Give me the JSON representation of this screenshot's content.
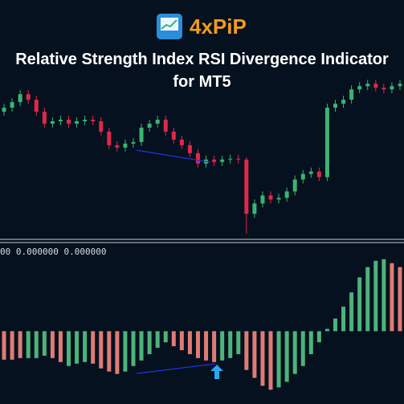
{
  "header": {
    "logo": "4xPiP",
    "title": "Relative Strength Index RSI Divergence Indicator for MT5"
  },
  "chart_data": [
    {
      "type": "candlestick",
      "up_color": "#3cb371",
      "down_color": "#e0284a",
      "ylim": [
        0,
        300
      ],
      "open": [
        160,
        165,
        172,
        182,
        175,
        160,
        145,
        148,
        150,
        145,
        148,
        150,
        148,
        135,
        118,
        115,
        120,
        122,
        140,
        145,
        150,
        135,
        125,
        118,
        108,
        95,
        100,
        97,
        100,
        101,
        100,
        32,
        45,
        55,
        50,
        52,
        60,
        75,
        82,
        85,
        78,
        165,
        170,
        175,
        188,
        192,
        195,
        190,
        188,
        192
      ],
      "high": [
        170,
        177,
        187,
        187,
        180,
        165,
        153,
        155,
        155,
        153,
        155,
        155,
        153,
        140,
        123,
        125,
        127,
        145,
        150,
        155,
        155,
        140,
        130,
        123,
        113,
        105,
        105,
        105,
        106,
        106,
        103,
        50,
        60,
        60,
        57,
        65,
        80,
        87,
        90,
        90,
        170,
        175,
        180,
        193,
        197,
        200,
        200,
        195,
        197,
        200
      ],
      "low": [
        155,
        160,
        167,
        170,
        155,
        140,
        140,
        143,
        140,
        140,
        143,
        143,
        130,
        113,
        110,
        110,
        115,
        117,
        135,
        140,
        130,
        120,
        113,
        103,
        90,
        90,
        92,
        92,
        95,
        95,
        7,
        27,
        40,
        45,
        45,
        47,
        55,
        70,
        77,
        73,
        73,
        160,
        165,
        170,
        183,
        187,
        185,
        183,
        183,
        187
      ],
      "close": [
        165,
        172,
        182,
        175,
        160,
        145,
        148,
        150,
        145,
        148,
        150,
        148,
        135,
        118,
        115,
        120,
        122,
        140,
        145,
        150,
        135,
        125,
        118,
        108,
        95,
        100,
        97,
        100,
        101,
        100,
        32,
        45,
        55,
        50,
        52,
        60,
        75,
        82,
        85,
        78,
        165,
        170,
        175,
        188,
        192,
        195,
        190,
        188,
        192,
        195
      ]
    },
    {
      "type": "histogram",
      "label": "00 0.000000 0.000000",
      "ylim": [
        -92,
        111
      ],
      "values": [
        -36,
        -36,
        -34,
        -34,
        -34,
        -31,
        -34,
        -39,
        -44,
        -41,
        -39,
        -41,
        -47,
        -51,
        -54,
        -51,
        -44,
        -37,
        -29,
        -21,
        -14,
        -19,
        -24,
        -29,
        -34,
        -37,
        -39,
        -37,
        -34,
        -29,
        -49,
        -59,
        -69,
        -74,
        -71,
        -64,
        -54,
        -44,
        -29,
        -14,
        3,
        16,
        31,
        49,
        68,
        81,
        89,
        91,
        86,
        81
      ],
      "colors": [
        "#e07b74",
        "#e07b74",
        "#e07b74",
        "#4db37a",
        "#4db37a",
        "#4db37a",
        "#e07b74",
        "#e07b74",
        "#4db37a",
        "#4db37a",
        "#4db37a",
        "#e07b74",
        "#e07b74",
        "#e07b74",
        "#e07b74",
        "#4db37a",
        "#4db37a",
        "#4db37a",
        "#4db37a",
        "#4db37a",
        "#4db37a",
        "#e07b74",
        "#e07b74",
        "#e07b74",
        "#e07b74",
        "#e07b74",
        "#e07b74",
        "#4db37a",
        "#4db37a",
        "#4db37a",
        "#e07b74",
        "#e07b74",
        "#e07b74",
        "#e07b74",
        "#4db37a",
        "#4db37a",
        "#4db37a",
        "#4db37a",
        "#4db37a",
        "#4db37a",
        "#4db37a",
        "#4db37a",
        "#4db37a",
        "#4db37a",
        "#4db37a",
        "#4db37a",
        "#4db37a",
        "#4db37a",
        "#e07b74",
        "#e07b74"
      ]
    }
  ]
}
